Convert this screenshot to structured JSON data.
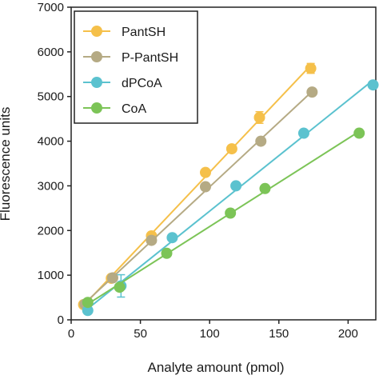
{
  "chart_data": {
    "type": "line",
    "title": "",
    "xlabel": "Analyte amount (pmol)",
    "ylabel": "Fluorescence units",
    "xlim": [
      0,
      220
    ],
    "ylim": [
      0,
      7000
    ],
    "x_ticks": [
      0,
      50,
      100,
      150,
      200
    ],
    "y_ticks": [
      0,
      1000,
      2000,
      3000,
      4000,
      5000,
      6000,
      7000
    ],
    "grid": false,
    "legend_position": "top-left",
    "series": [
      {
        "name": "PantSH",
        "color": "#f5c04a",
        "x": [
          9,
          29,
          58,
          97,
          116,
          136,
          173
        ],
        "y": [
          340,
          930,
          1880,
          3300,
          3830,
          4530,
          5630
        ],
        "err": [
          30,
          50,
          60,
          70,
          70,
          130,
          110
        ]
      },
      {
        "name": "P-PantSH",
        "color": "#b5aa84",
        "x": [
          10,
          30,
          58,
          97,
          137,
          174
        ],
        "y": [
          350,
          940,
          1780,
          2980,
          4000,
          5100
        ],
        "err": [
          30,
          40,
          50,
          60,
          60,
          70
        ]
      },
      {
        "name": "dPCoA",
        "color": "#5bc2cf",
        "x": [
          12,
          36,
          73,
          119,
          168,
          218
        ],
        "y": [
          210,
          760,
          1840,
          3000,
          4180,
          5260
        ],
        "err": [
          40,
          250,
          50,
          60,
          60,
          60
        ]
      },
      {
        "name": "CoA",
        "color": "#7cc457",
        "x": [
          12,
          35,
          69,
          115,
          140,
          208
        ],
        "y": [
          390,
          730,
          1490,
          2390,
          2940,
          4180
        ],
        "err": [
          30,
          60,
          50,
          60,
          50,
          60
        ]
      }
    ]
  }
}
